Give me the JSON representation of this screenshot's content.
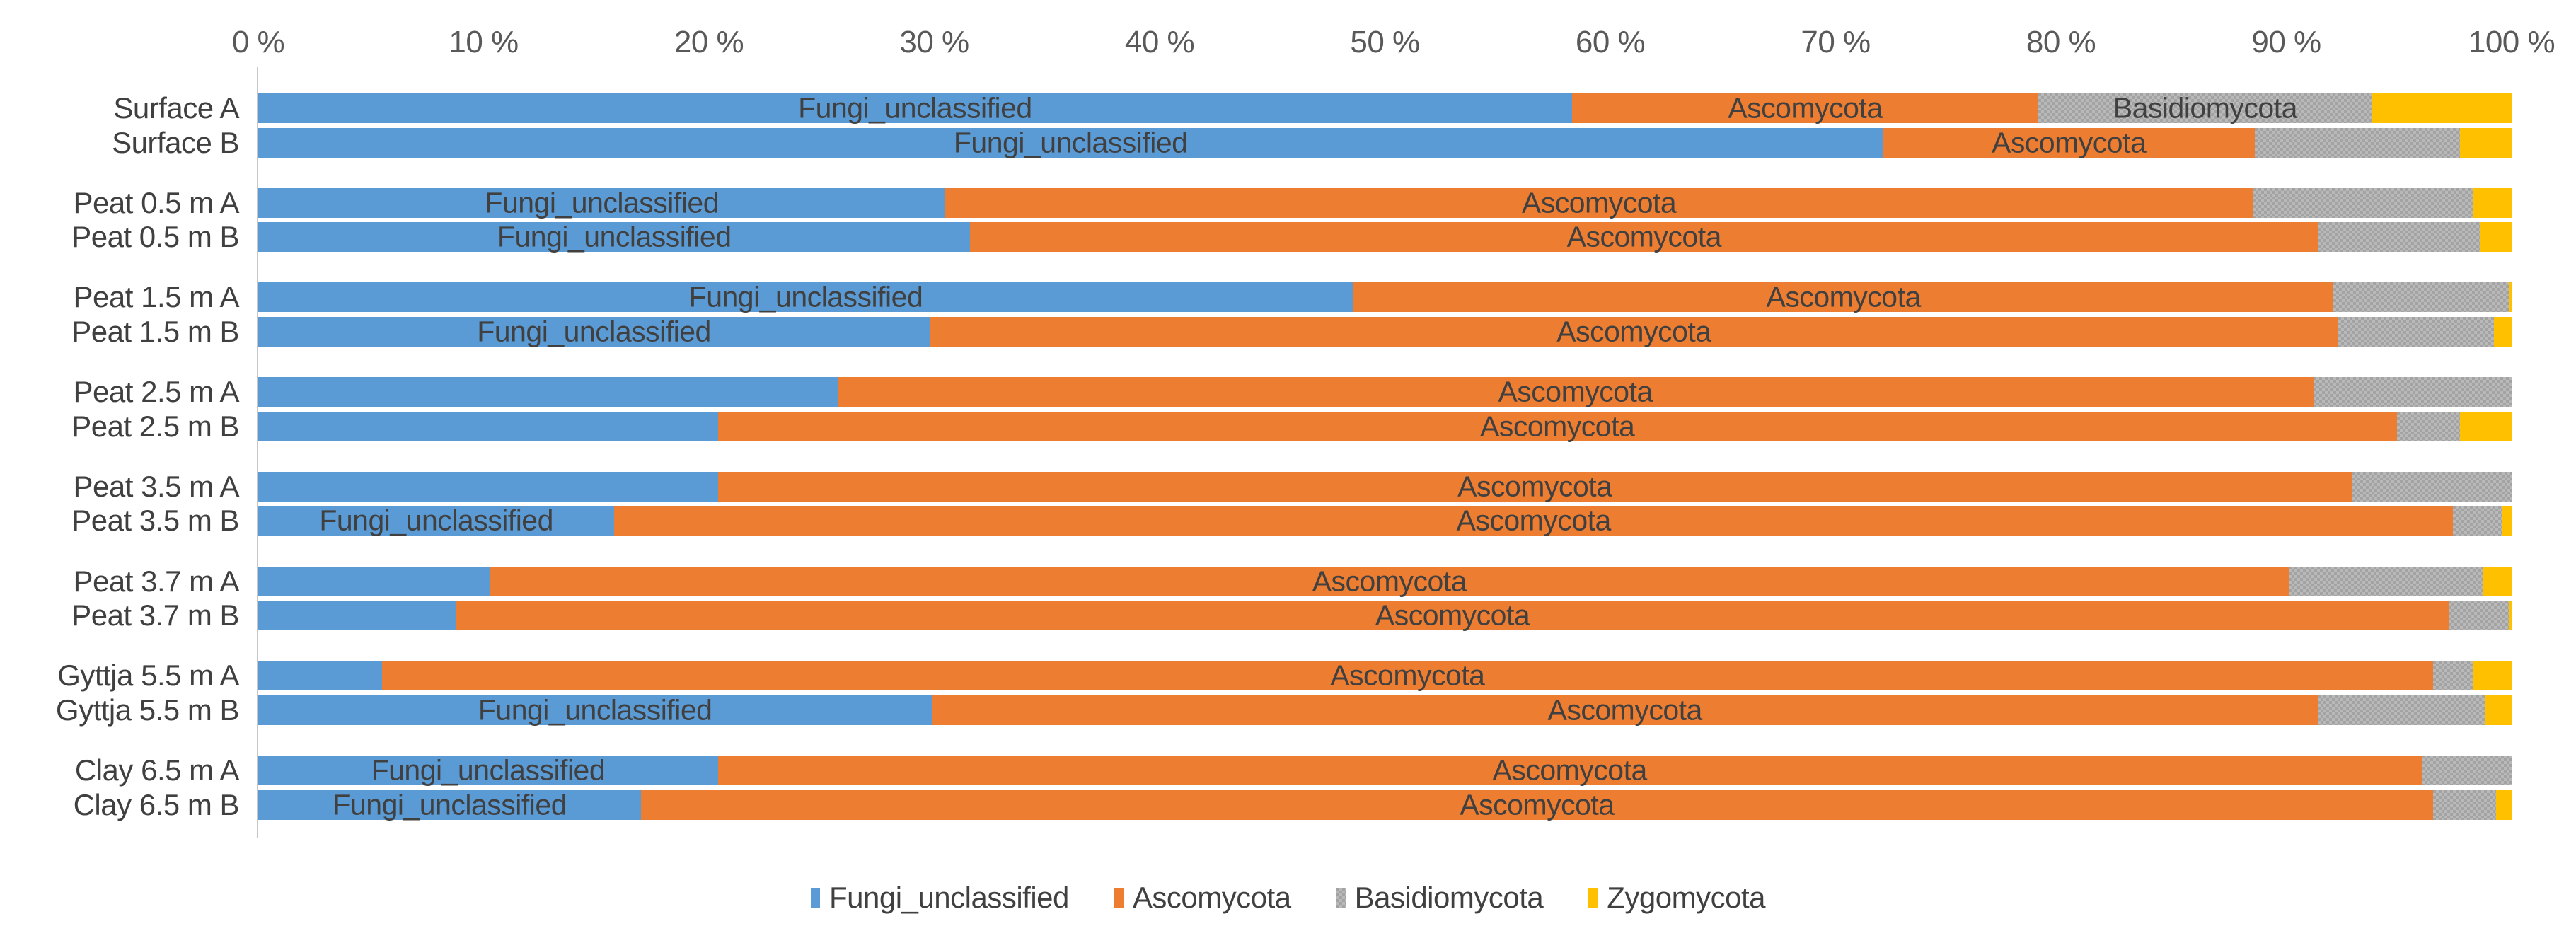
{
  "chart_data": {
    "type": "bar",
    "orientation": "horizontal",
    "stacked": true,
    "value_unit": "%",
    "x_axis": {
      "position": "top",
      "range": [
        0,
        100
      ],
      "ticks": [
        "0 %",
        "10 %",
        "20 %",
        "30 %",
        "40 %",
        "50 %",
        "60 %",
        "70 %",
        "80 %",
        "90 %",
        "100 %"
      ]
    },
    "series": [
      {
        "name": "Fungi_unclassified",
        "color": "#5B9BD5",
        "pattern": "solid"
      },
      {
        "name": "Ascomycota",
        "color": "#ED7D31",
        "pattern": "solid"
      },
      {
        "name": "Basidiomycota",
        "color": "#A3A3A3",
        "pattern": "checker"
      },
      {
        "name": "Zygomycota",
        "color": "#FFC000",
        "pattern": "solid"
      }
    ],
    "rows": [
      {
        "label": "Surface A",
        "group": 0,
        "pair": "A",
        "values": [
          58.3,
          20.7,
          14.8,
          6.2
        ],
        "labeled_series": [
          0,
          1,
          2
        ]
      },
      {
        "label": "Surface B",
        "group": 0,
        "pair": "B",
        "values": [
          72.1,
          16.5,
          9.1,
          2.3
        ],
        "labeled_series": [
          0,
          1
        ]
      },
      {
        "label": "Peat 0.5 m A",
        "group": 1,
        "pair": "A",
        "values": [
          30.5,
          58.0,
          9.8,
          1.7
        ],
        "labeled_series": [
          0,
          1
        ]
      },
      {
        "label": "Peat 0.5 m B",
        "group": 1,
        "pair": "B",
        "values": [
          31.6,
          59.8,
          7.2,
          1.4
        ],
        "labeled_series": [
          0,
          1
        ]
      },
      {
        "label": "Peat 1.5 m A",
        "group": 2,
        "pair": "A",
        "values": [
          48.6,
          43.5,
          7.8,
          0.1
        ],
        "labeled_series": [
          0,
          1
        ]
      },
      {
        "label": "Peat 1.5 m B",
        "group": 2,
        "pair": "B",
        "values": [
          29.8,
          62.5,
          6.9,
          0.8
        ],
        "labeled_series": [
          0,
          1
        ]
      },
      {
        "label": "Peat 2.5 m A",
        "group": 3,
        "pair": "A",
        "values": [
          25.7,
          65.5,
          8.8,
          0.0
        ],
        "labeled_series": [
          1
        ]
      },
      {
        "label": "Peat 2.5 m B",
        "group": 3,
        "pair": "B",
        "values": [
          20.4,
          74.5,
          2.8,
          2.3
        ],
        "labeled_series": [
          1
        ]
      },
      {
        "label": "Peat 3.5 m A",
        "group": 4,
        "pair": "A",
        "values": [
          20.4,
          72.5,
          7.1,
          0.0
        ],
        "labeled_series": [
          1
        ]
      },
      {
        "label": "Peat 3.5 m B",
        "group": 4,
        "pair": "B",
        "values": [
          15.8,
          81.6,
          2.2,
          0.4
        ],
        "labeled_series": [
          0,
          1
        ]
      },
      {
        "label": "Peat 3.7 m A",
        "group": 5,
        "pair": "A",
        "values": [
          10.3,
          79.8,
          8.6,
          1.3
        ],
        "labeled_series": [
          1
        ]
      },
      {
        "label": "Peat 3.7 m B",
        "group": 5,
        "pair": "B",
        "values": [
          8.8,
          88.4,
          2.7,
          0.1
        ],
        "labeled_series": [
          1
        ]
      },
      {
        "label": "Gyttja 5.5 m A",
        "group": 6,
        "pair": "A",
        "values": [
          5.5,
          91.0,
          1.8,
          1.7
        ],
        "labeled_series": [
          1
        ]
      },
      {
        "label": "Gyttja 5.5 m B",
        "group": 6,
        "pair": "B",
        "values": [
          29.9,
          61.5,
          7.4,
          1.2
        ],
        "labeled_series": [
          0,
          1
        ]
      },
      {
        "label": "Clay 6.5 m A",
        "group": 7,
        "pair": "A",
        "values": [
          20.4,
          75.6,
          4.0,
          0.0
        ],
        "labeled_series": [
          0,
          1
        ]
      },
      {
        "label": "Clay 6.5 m B",
        "group": 7,
        "pair": "B",
        "values": [
          17.0,
          79.5,
          2.8,
          0.7
        ],
        "labeled_series": [
          0,
          1
        ]
      }
    ],
    "legend": {
      "position": "bottom",
      "entries": [
        "Fungi_unclassified",
        "Ascomycota",
        "Basidiomycota",
        "Zygomycota"
      ]
    }
  }
}
